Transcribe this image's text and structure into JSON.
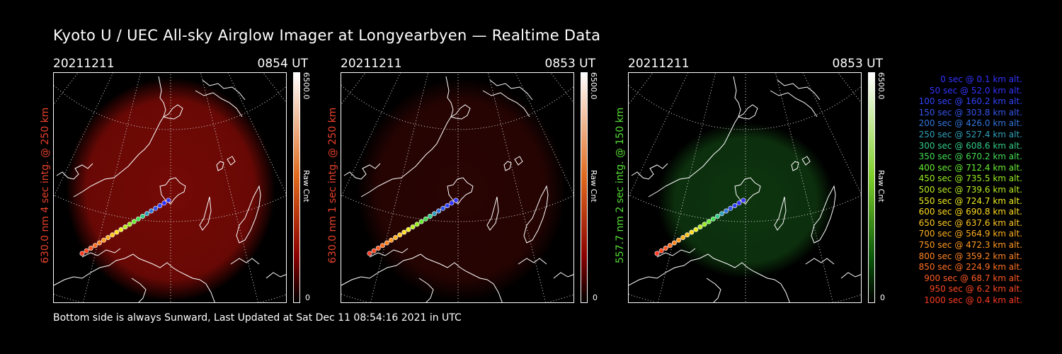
{
  "title": "Kyoto U / UEC All-sky Airglow Imager at Longyearbyen — Realtime Data",
  "panels": [
    {
      "date": "20211211",
      "time": "0854 UT",
      "label": "630.0 nm 4 sec intg. @ 250 km",
      "label_color": "#e8412c",
      "cbar_max": "6500.0",
      "cbar_min": "0",
      "cbar_unit": "Raw Cnt",
      "cbar_top_color": "#ffffff",
      "cbar_mid_color": "#e06a1e",
      "cbar_low_color": "#8a0000",
      "glow_color": "#7a0a06",
      "glow_intensity": 0.95
    },
    {
      "date": "20211211",
      "time": "0853 UT",
      "label": "630.0 nm 1 sec intg. @ 250 km",
      "label_color": "#e8412c",
      "cbar_max": "6500.0",
      "cbar_min": "0",
      "cbar_unit": "Raw Cnt",
      "cbar_top_color": "#ffffff",
      "cbar_mid_color": "#e06a1e",
      "cbar_low_color": "#8a0000",
      "glow_color": "#3a0604",
      "glow_intensity": 0.7
    },
    {
      "date": "20211211",
      "time": "0853 UT",
      "label": "557.7 nm 2 sec intg. @ 150 km",
      "label_color": "#55dd33",
      "cbar_max": "6500.0",
      "cbar_min": "0",
      "cbar_unit": "Raw Cnt",
      "cbar_top_color": "#ffffff",
      "cbar_mid_color": "#7fcf2a",
      "cbar_low_color": "#0c5a0c",
      "glow_color": "#0f3a10",
      "glow_intensity": 0.9
    }
  ],
  "legend": [
    {
      "text": "0 sec @   0.1 km alt.",
      "color": "#3333ff"
    },
    {
      "text": "50 sec @  52.0 km alt.",
      "color": "#3333ff"
    },
    {
      "text": "100 sec @ 160.2 km alt.",
      "color": "#3344ff"
    },
    {
      "text": "150 sec @ 303.8 km alt.",
      "color": "#3355ee"
    },
    {
      "text": "200 sec @ 426.0 km alt.",
      "color": "#3377dd"
    },
    {
      "text": "250 sec @ 527.4 km alt.",
      "color": "#33a0bb"
    },
    {
      "text": "300 sec @ 608.6 km alt.",
      "color": "#33cc88"
    },
    {
      "text": "350 sec @ 670.2 km alt.",
      "color": "#44dd55"
    },
    {
      "text": "400 sec @ 712.4 km alt.",
      "color": "#66ee33"
    },
    {
      "text": "450 sec @ 735.5 km alt.",
      "color": "#99ee22"
    },
    {
      "text": "500 sec @ 739.6 km alt.",
      "color": "#bbee22"
    },
    {
      "text": "550 sec @ 724.7 km alt.",
      "color": "#eeee22"
    },
    {
      "text": "600 sec @ 690.8 km alt.",
      "color": "#ffdd22"
    },
    {
      "text": "650 sec @ 637.6 km alt.",
      "color": "#ffc822"
    },
    {
      "text": "700 sec @ 564.9 km alt.",
      "color": "#ffb020"
    },
    {
      "text": "750 sec @ 472.3 km alt.",
      "color": "#ff9a22"
    },
    {
      "text": "800 sec @ 359.2 km alt.",
      "color": "#ff8422"
    },
    {
      "text": "850 sec @ 224.9 km alt.",
      "color": "#ff7022"
    },
    {
      "text": "900 sec @  68.7 km alt.",
      "color": "#ff5a22"
    },
    {
      "text": "950 sec @   6.2 km alt.",
      "color": "#ff4822"
    },
    {
      "text": "1000 sec @   0.4 km alt.",
      "color": "#ff3a22"
    }
  ],
  "footer": "Bottom side is always Sunward, Last Updated at Sat Dec 11 08:54:16 2021 in UTC"
}
